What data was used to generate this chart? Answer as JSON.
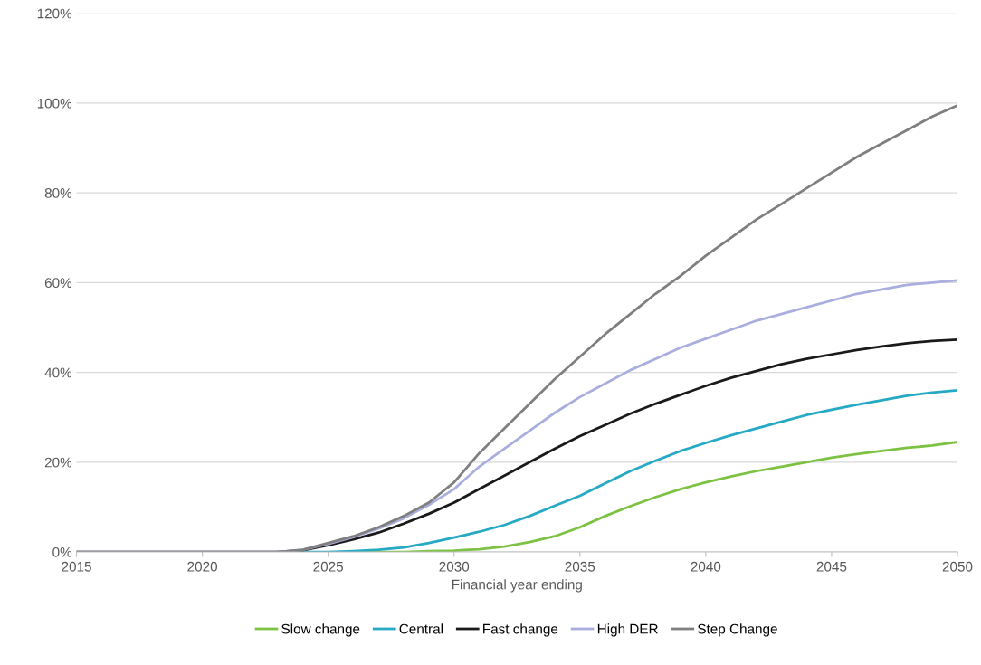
{
  "chart_data": {
    "type": "line",
    "xlabel": "Financial year ending",
    "x": [
      2015,
      2016,
      2017,
      2018,
      2019,
      2020,
      2021,
      2022,
      2023,
      2024,
      2025,
      2026,
      2027,
      2028,
      2029,
      2030,
      2031,
      2032,
      2033,
      2034,
      2035,
      2036,
      2037,
      2038,
      2039,
      2040,
      2041,
      2042,
      2043,
      2044,
      2045,
      2046,
      2047,
      2048,
      2049,
      2050
    ],
    "series": [
      {
        "name": "Slow change",
        "color": "#7dc242",
        "values": [
          null,
          null,
          null,
          null,
          null,
          null,
          null,
          null,
          null,
          null,
          null,
          0,
          0,
          0,
          0.2,
          0.3,
          0.6,
          1.2,
          2.2,
          3.5,
          5.5,
          8,
          10.2,
          12.2,
          14,
          15.5,
          16.8,
          18,
          19,
          20,
          21,
          21.8,
          22.5,
          23.2,
          23.7,
          24.5
        ]
      },
      {
        "name": "Central",
        "color": "#26a9c4",
        "values": [
          null,
          null,
          null,
          null,
          null,
          null,
          null,
          null,
          0,
          0,
          0,
          0.2,
          0.5,
          1,
          2,
          3.2,
          4.5,
          6,
          8,
          10.3,
          12.5,
          15.3,
          18,
          20.3,
          22.5,
          24.3,
          26,
          27.5,
          29,
          30.5,
          31.7,
          32.8,
          33.8,
          34.8,
          35.5,
          36
        ]
      },
      {
        "name": "Fast change",
        "color": "#1a1a1a",
        "values": [
          0,
          0,
          0,
          0,
          0,
          0,
          0,
          0,
          0,
          0.4,
          1.5,
          2.8,
          4.3,
          6.3,
          8.5,
          11,
          14,
          17,
          20,
          23,
          25.8,
          28.3,
          30.8,
          33,
          35,
          37,
          38.8,
          40.3,
          41.8,
          43,
          44,
          45,
          45.8,
          46.5,
          47,
          47.3
        ]
      },
      {
        "name": "High DER",
        "color": "#a9aede",
        "values": [
          0,
          0,
          0,
          0,
          0,
          0,
          0,
          0,
          0,
          0.5,
          1.8,
          3.3,
          5.2,
          7.5,
          10.5,
          14,
          19,
          23,
          27,
          31,
          34.5,
          37.5,
          40.5,
          43,
          45.5,
          47.5,
          49.5,
          51.5,
          53,
          54.5,
          56,
          57.5,
          58.5,
          59.5,
          60,
          60.5
        ]
      },
      {
        "name": "Step Change",
        "color": "#7f7f7f",
        "values": [
          0,
          0,
          0,
          0,
          0,
          0,
          0,
          0,
          0,
          0.5,
          2,
          3.5,
          5.5,
          8,
          11,
          15.5,
          22,
          27.5,
          33,
          38.5,
          43.5,
          48.5,
          53,
          57.5,
          61.5,
          66,
          70,
          74,
          77.5,
          81,
          84.5,
          88,
          91,
          94,
          97,
          99.5
        ]
      }
    ],
    "xlim": [
      2015,
      2050
    ],
    "xticks": [
      2015,
      2020,
      2025,
      2030,
      2035,
      2040,
      2045,
      2050
    ],
    "ylim": [
      0,
      120
    ],
    "yticks": [
      {
        "value": 0,
        "label": "0%"
      },
      {
        "value": 20,
        "label": "20%"
      },
      {
        "value": 40,
        "label": "40%"
      },
      {
        "value": 60,
        "label": "60%"
      },
      {
        "value": 80,
        "label": "80%"
      },
      {
        "value": 100,
        "label": "100%"
      },
      {
        "value": 120,
        "label": "120%"
      }
    ],
    "grid": "y",
    "legend": "bottom",
    "marker": "none",
    "line_style": "solid"
  }
}
